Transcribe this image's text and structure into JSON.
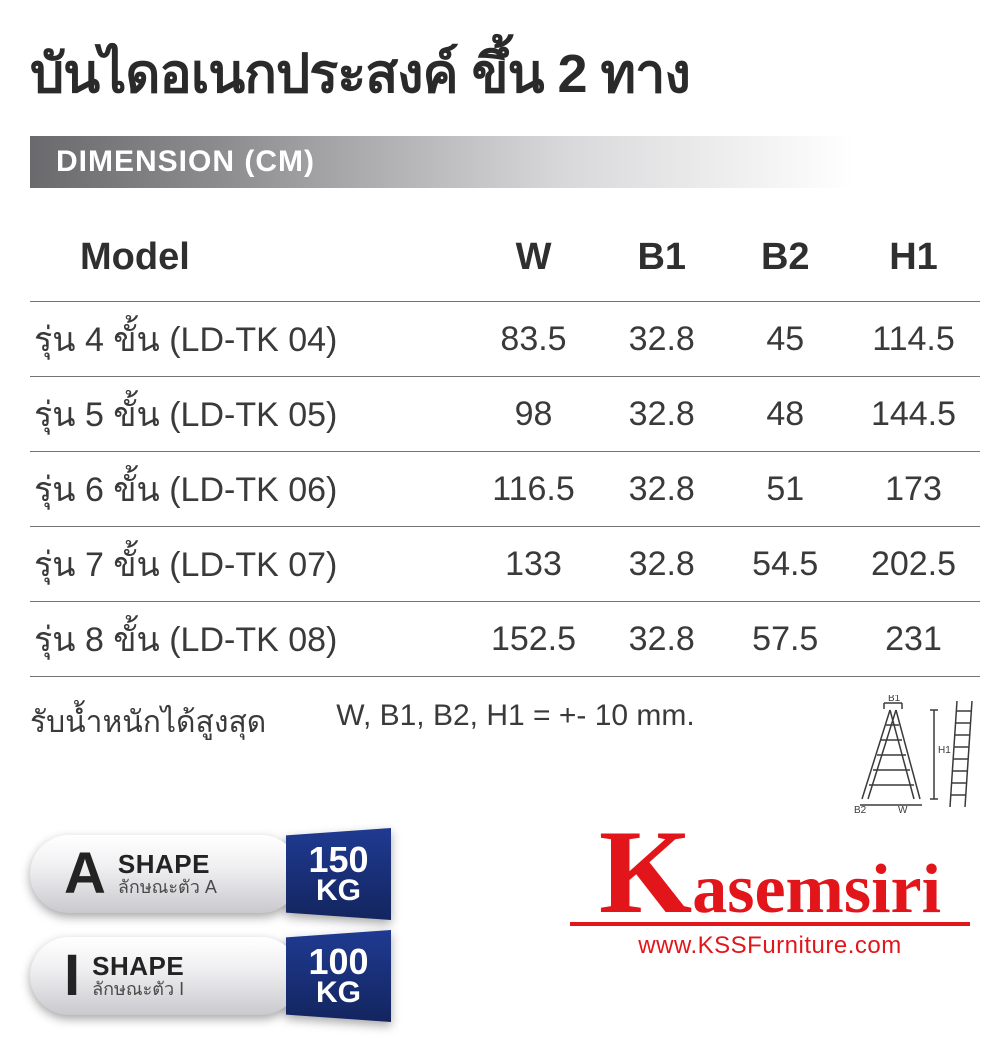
{
  "title": "บันไดอเนกประสงค์ ขึ้น 2 ทาง",
  "section_label": "DIMENSION (CM)",
  "table": {
    "columns": [
      "Model",
      "W",
      "B1",
      "B2",
      "H1"
    ],
    "col_widths_pct": [
      46,
      14,
      13,
      13,
      14
    ],
    "col_align": [
      "left",
      "center",
      "center",
      "center",
      "center"
    ],
    "header_fontsize_pt": 38,
    "body_fontsize_pt": 34,
    "border_color": "#747478",
    "rows": [
      [
        "รุ่น 4 ขั้น (LD-TK 04)",
        "83.5",
        "32.8",
        "45",
        "114.5"
      ],
      [
        "รุ่น 5 ขั้น (LD-TK 05)",
        "98",
        "32.8",
        "48",
        "144.5"
      ],
      [
        "รุ่น 6 ขั้น (LD-TK 06)",
        "116.5",
        "32.8",
        "51",
        "173"
      ],
      [
        "รุ่น 7 ขั้น (LD-TK 07)",
        "133",
        "32.8",
        "54.5",
        "202.5"
      ],
      [
        "รุ่น 8 ขั้น (LD-TK 08)",
        "152.5",
        "32.8",
        "57.5",
        "231"
      ]
    ]
  },
  "max_load_label": "รับน้ำหนักได้สูงสุด",
  "tolerance_note": "W, B1, B2, H1 = +- 10 mm.",
  "shape_badges": [
    {
      "letter": "A",
      "line1": "SHAPE",
      "line2": "ลักษณะตัว A",
      "value": "150",
      "unit": "KG"
    },
    {
      "letter": "I",
      "line1": "SHAPE",
      "line2": "ลักษณะตัว I",
      "value": "100",
      "unit": "KG"
    }
  ],
  "badge_style": {
    "pill_gradient": [
      "#ffffff",
      "#f0f0f2",
      "#c9c9ce"
    ],
    "pill_text_color": "#232323",
    "tag_gradient": [
      "#1f3a91",
      "#13255f"
    ],
    "tag_text_color": "#ffffff",
    "letter_fontsize_pt": 58,
    "shape_fontsize_pt": 26,
    "shape_sub_fontsize_pt": 18,
    "kg_num_fontsize_pt": 36,
    "kg_unit_fontsize_pt": 30
  },
  "diagram": {
    "labels": {
      "top": "B1",
      "right": "H1",
      "bottom_left": "B2",
      "bottom_right": "W"
    },
    "stroke_color": "#3a3a3a",
    "stroke_width": 1.5
  },
  "logo": {
    "name_html_bigK": "K",
    "name_rest": "asemsiri",
    "url": "www.KSSFurniture.com",
    "color": "#e2161a",
    "big_fontsize_pt": 120,
    "name_fontsize_pt": 70,
    "url_fontsize_pt": 24
  },
  "colors": {
    "page_bg": "#ffffff",
    "title_color": "#2a2a2a",
    "text_color": "#3a3a3a",
    "banner_gradient": [
      "#6a6a6d",
      "#8d8d90",
      "#d8d8da",
      "#ffffff"
    ],
    "banner_text": "#ffffff"
  }
}
